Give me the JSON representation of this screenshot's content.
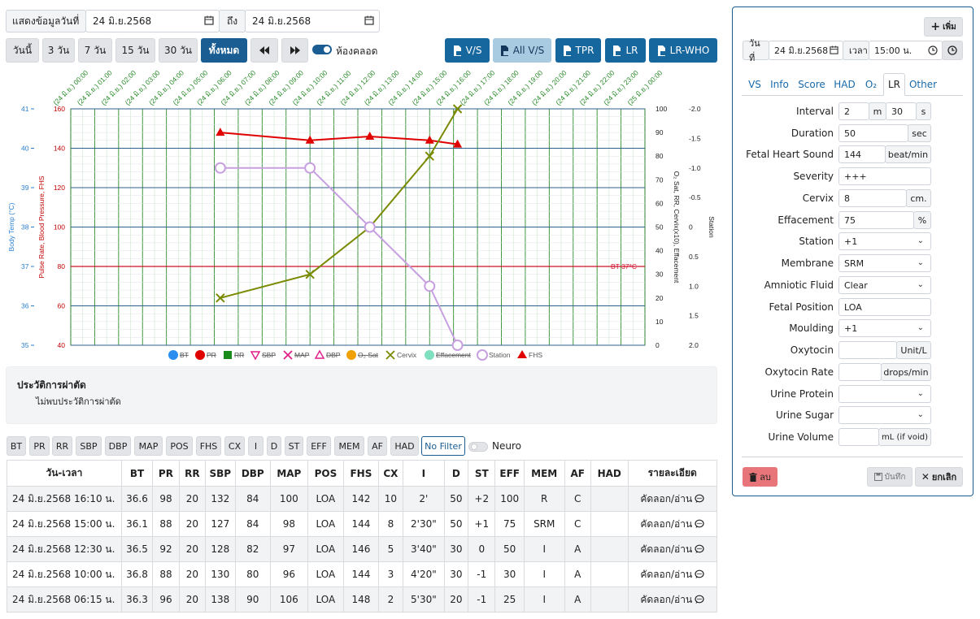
{
  "filter_bar": {
    "show_data_label": "แสดงข้อมูลวันที่",
    "date_from": "24 มิ.ย.2568",
    "to_label": "ถึง",
    "date_to": "24 มิ.ย.2568"
  },
  "range_buttons": [
    "วันนี้",
    "3 วัน",
    "7 วัน",
    "15 วัน",
    "30 วัน",
    "ทั้งหมด"
  ],
  "labor_room_label": "ห้องคลอด",
  "print_buttons": [
    "V/S",
    "All V/S",
    "TPR",
    "LR",
    "LR-WHO"
  ],
  "surgery": {
    "title": "ประวัติการผ่าตัด",
    "empty": "ไม่พบประวัติการผ่าตัด"
  },
  "filter_buttons": [
    "BT",
    "PR",
    "RR",
    "SBP",
    "DBP",
    "MAP",
    "POS",
    "FHS",
    "CX",
    "I",
    "D",
    "ST",
    "EFF",
    "MEM",
    "AF",
    "HAD",
    "No Filter"
  ],
  "neuro_label": "Neuro",
  "table": {
    "headers": [
      "วัน-เวลา",
      "BT",
      "PR",
      "RR",
      "SBP",
      "DBP",
      "MAP",
      "POS",
      "FHS",
      "CX",
      "I",
      "D",
      "ST",
      "EFF",
      "MEM",
      "AF",
      "HAD",
      "รายละเอียด"
    ],
    "rows": [
      [
        "24 มิ.ย.2568 16:10 น.",
        "36.6",
        "98",
        "20",
        "132",
        "84",
        "100",
        "LOA",
        "142",
        "10",
        "2'",
        "50",
        "+2",
        "100",
        "R",
        "C",
        "",
        "คัดลอก/อ่าน"
      ],
      [
        "24 มิ.ย.2568 15:00 น.",
        "36.1",
        "88",
        "20",
        "127",
        "84",
        "98",
        "LOA",
        "144",
        "8",
        "2'30\"",
        "50",
        "+1",
        "75",
        "SRM",
        "C",
        "",
        "คัดลอก/อ่าน"
      ],
      [
        "24 มิ.ย.2568 12:30 น.",
        "36.5",
        "92",
        "20",
        "128",
        "82",
        "97",
        "LOA",
        "146",
        "5",
        "3'40\"",
        "30",
        "0",
        "50",
        "I",
        "A",
        "",
        "คัดลอก/อ่าน"
      ],
      [
        "24 มิ.ย.2568 10:00 น.",
        "36.8",
        "88",
        "20",
        "130",
        "80",
        "96",
        "LOA",
        "144",
        "3",
        "4'20\"",
        "30",
        "-1",
        "30",
        "I",
        "A",
        "",
        "คัดลอก/อ่าน"
      ],
      [
        "24 มิ.ย.2568 06:15 น.",
        "36.3",
        "96",
        "20",
        "138",
        "90",
        "106",
        "LOA",
        "148",
        "2",
        "5'30\"",
        "20",
        "-1",
        "25",
        "I",
        "A",
        "",
        "คัดลอก/อ่าน"
      ]
    ]
  },
  "chart_data": {
    "type": "line",
    "x_ticks": [
      "(24 มิ.ย.) 00:00",
      "(24 มิ.ย.) 01:00",
      "(24 มิ.ย.) 02:00",
      "(24 มิ.ย.) 03:00",
      "(24 มิ.ย.) 04:00",
      "(24 มิ.ย.) 05:00",
      "(24 มิ.ย.) 06:00",
      "(24 มิ.ย.) 07:00",
      "(24 มิ.ย.) 08:00",
      "(24 มิ.ย.) 09:00",
      "(24 มิ.ย.) 10:00",
      "(24 มิ.ย.) 11:00",
      "(24 มิ.ย.) 12:00",
      "(24 มิ.ย.) 13:00",
      "(24 มิ.ย.) 14:00",
      "(24 มิ.ย.) 15:00",
      "(24 มิ.ย.) 16:00",
      "(24 มิ.ย.) 17:00",
      "(24 มิ.ย.) 18:00",
      "(24 มิ.ย.) 19:00",
      "(24 มิ.ย.) 20:00",
      "(24 มิ.ย.) 21:00",
      "(24 มิ.ย.) 22:00",
      "(24 มิ.ย.) 23:00",
      "(25 มิ.ย.) 00:00"
    ],
    "x_range": [
      "24 มิ.ย. 00:00",
      "25 มิ.ย. 00:00"
    ],
    "axes": {
      "body_temp": {
        "label": "Body Temp (°C)",
        "range": [
          35,
          41
        ],
        "ticks": [
          "35",
          "36",
          "37",
          "38",
          "39",
          "40",
          "41"
        ],
        "color": "#2a7fd0"
      },
      "pulse": {
        "label": "Pulse Rate, Blood Pressure, FHS",
        "range": [
          40,
          160
        ],
        "ticks": [
          "40",
          "60",
          "80",
          "100",
          "120",
          "140",
          "160"
        ],
        "color": "#c00000"
      },
      "o2": {
        "label": "O₂ Sat, RR, Cervix(x10), Effacement",
        "range": [
          0,
          100
        ],
        "ticks": [
          "0",
          "10",
          "20",
          "30",
          "40",
          "50",
          "60",
          "70",
          "80",
          "90",
          "100"
        ]
      },
      "station": {
        "label": "Station",
        "range": [
          2.0,
          -2.0
        ],
        "ticks": [
          "2.0",
          "1.5",
          "1.0",
          "0.5",
          "0",
          "-0.5",
          "-1.0",
          "-1.5",
          "-2.0"
        ]
      }
    },
    "reference_line": {
      "label": "BT 37°C"
    },
    "series": [
      {
        "name": "FHS",
        "axis": "pulse",
        "color": "#e00000",
        "marker": "triangle",
        "points": [
          [
            "24 มิ.ย. 06:15",
            148
          ],
          [
            "24 มิ.ย. 10:00",
            144
          ],
          [
            "24 มิ.ย. 12:30",
            146
          ],
          [
            "24 มิ.ย. 15:00",
            144
          ],
          [
            "24 มิ.ย. 16:10",
            142
          ]
        ]
      },
      {
        "name": "Cervix",
        "axis": "o2",
        "color": "#7a8a00",
        "marker": "x",
        "points": [
          [
            "24 มิ.ย. 06:15",
            20
          ],
          [
            "24 มิ.ย. 10:00",
            30
          ],
          [
            "24 มิ.ย. 12:30",
            50
          ],
          [
            "24 มิ.ย. 15:00",
            80
          ],
          [
            "24 มิ.ย. 16:10",
            100
          ]
        ]
      },
      {
        "name": "Station",
        "axis": "station",
        "color": "#c7a0e0",
        "marker": "circle",
        "points": [
          [
            "24 มิ.ย. 06:15",
            -1
          ],
          [
            "24 มิ.ย. 10:00",
            -1
          ],
          [
            "24 มิ.ย. 12:30",
            0
          ],
          [
            "24 มิ.ย. 15:00",
            1
          ],
          [
            "24 มิ.ย. 16:10",
            2
          ]
        ]
      }
    ],
    "legend": [
      {
        "name": "BT",
        "color": "#2a8ef0",
        "marker": "circle",
        "hidden": true
      },
      {
        "name": "PR",
        "color": "#e00000",
        "marker": "circle",
        "hidden": true
      },
      {
        "name": "RR",
        "color": "#1a8a1a",
        "marker": "square",
        "hidden": true
      },
      {
        "name": "SBP",
        "color": "#e0208a",
        "marker": "tri-down",
        "hidden": true
      },
      {
        "name": "MAP",
        "color": "#e0208a",
        "marker": "x",
        "hidden": true
      },
      {
        "name": "DBP",
        "color": "#e0208a",
        "marker": "tri-up",
        "hidden": true
      },
      {
        "name": "O₂ Sat",
        "color": "#f0a000",
        "marker": "circle",
        "hidden": true
      },
      {
        "name": "Cervix",
        "color": "#7a8a00",
        "marker": "x",
        "hidden": false
      },
      {
        "name": "Effacement",
        "color": "#7fe0c0",
        "marker": "circle",
        "hidden": true
      },
      {
        "name": "Station",
        "color": "#c7a0e0",
        "marker": "ring",
        "hidden": false
      },
      {
        "name": "FHS",
        "color": "#e00000",
        "marker": "triangle",
        "hidden": false
      }
    ],
    "legend_position": "bottom",
    "grid": true
  },
  "panel": {
    "add_label": "เพิ่ม",
    "date_label": "วันที่",
    "date_value": "24 มิ.ย.2568",
    "time_label": "เวลา",
    "time_value": "15:00 น.",
    "tabs": [
      "VS",
      "Info",
      "Score",
      "HAD",
      "O₂",
      "LR",
      "Other"
    ],
    "active_tab": "LR",
    "fields": {
      "interval": {
        "label": "Interval",
        "minutes": "2",
        "m_unit": "m",
        "seconds": "30",
        "s_unit": "s"
      },
      "duration": {
        "label": "Duration",
        "value": "50",
        "unit": "sec"
      },
      "fhs": {
        "label": "Fetal Heart Sound",
        "value": "144",
        "unit": "beat/min"
      },
      "severity": {
        "label": "Severity",
        "value": "+++"
      },
      "cervix": {
        "label": "Cervix",
        "value": "8",
        "unit": "cm."
      },
      "effacement": {
        "label": "Effacement",
        "value": "75",
        "unit": "%"
      },
      "station": {
        "label": "Station",
        "value": "+1"
      },
      "membrane": {
        "label": "Membrane",
        "value": "SRM"
      },
      "amniotic": {
        "label": "Amniotic Fluid",
        "value": "Clear"
      },
      "position": {
        "label": "Fetal Position",
        "value": "LOA"
      },
      "moulding": {
        "label": "Moulding",
        "value": "+1"
      },
      "oxytocin": {
        "label": "Oxytocin",
        "value": "",
        "unit": "Unit/L"
      },
      "oxytocin_rate": {
        "label": "Oxytocin Rate",
        "value": "",
        "unit": "drops/min"
      },
      "urine_protein": {
        "label": "Urine Protein",
        "value": ""
      },
      "urine_sugar": {
        "label": "Urine Sugar",
        "value": ""
      },
      "urine_volume": {
        "label": "Urine Volume",
        "value": "",
        "unit": "mL (if void)"
      }
    },
    "delete_label": "ลบ",
    "save_label": "บันทึก",
    "cancel_label": "ยกเลิก"
  }
}
